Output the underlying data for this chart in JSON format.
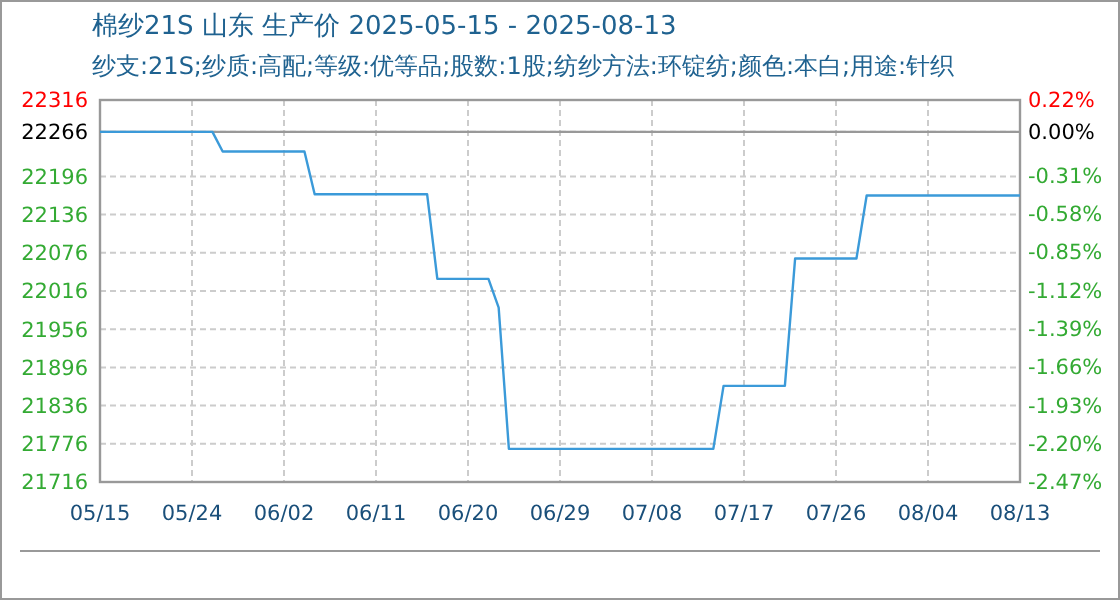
{
  "chart_data": {
    "type": "step",
    "title": "棉纱21S 山东 生产价 2025-05-15 - 2025-08-13",
    "subtitle": "纱支:21S;纱质:高配;等级:优等品;股数:1股;纺纱方法:环锭纺;颜色:本白;用途:针织",
    "x": [
      "2025-05-15",
      "2025-05-26",
      "2025-05-27",
      "2025-06-04",
      "2025-06-05",
      "2025-06-16",
      "2025-06-17",
      "2025-06-22",
      "2025-06-23",
      "2025-06-24",
      "2025-07-14",
      "2025-07-15",
      "2025-07-21",
      "2025-07-22",
      "2025-07-28",
      "2025-07-29",
      "2025-08-13"
    ],
    "series": [
      {
        "color": "#3b9ad9",
        "values": [
          22266,
          22266,
          22235,
          22235,
          22168,
          22168,
          22035,
          22035,
          21990,
          21768,
          21768,
          21867,
          21867,
          22067,
          22067,
          22166,
          22166
        ]
      }
    ],
    "xlim": [
      "2025-05-15",
      "2025-08-13"
    ],
    "xticks": [
      {
        "value": "2025-05-15",
        "label": "05/15"
      },
      {
        "value": "2025-05-24",
        "label": "05/24"
      },
      {
        "value": "2025-06-02",
        "label": "06/02"
      },
      {
        "value": "2025-06-11",
        "label": "06/11"
      },
      {
        "value": "2025-06-20",
        "label": "06/20"
      },
      {
        "value": "2025-06-29",
        "label": "06/29"
      },
      {
        "value": "2025-07-08",
        "label": "07/08"
      },
      {
        "value": "2025-07-17",
        "label": "07/17"
      },
      {
        "value": "2025-07-26",
        "label": "07/26"
      },
      {
        "value": "2025-08-04",
        "label": "08/04"
      },
      {
        "value": "2025-08-13",
        "label": "08/13"
      }
    ],
    "ylim": [
      21716,
      22316
    ],
    "yticks": [
      21716,
      21776,
      21836,
      21896,
      21956,
      22016,
      22076,
      22136,
      22196,
      22266,
      22316
    ],
    "y2lim": [
      -2.47,
      0.22
    ],
    "y2ticks": [
      {
        "value": -2.47,
        "label": "-2.47%"
      },
      {
        "value": -2.2,
        "label": "-2.20%"
      },
      {
        "value": -1.93,
        "label": "-1.93%"
      },
      {
        "value": -1.66,
        "label": "-1.66%"
      },
      {
        "value": -1.39,
        "label": "-1.39%"
      },
      {
        "value": -1.12,
        "label": "-1.12%"
      },
      {
        "value": -0.85,
        "label": "-0.85%"
      },
      {
        "value": -0.58,
        "label": "-0.58%"
      },
      {
        "value": -0.31,
        "label": "-0.31%"
      },
      {
        "value": 0,
        "label": "0.00%"
      },
      {
        "value": 0.22,
        "label": "0.22%"
      }
    ],
    "ref_lines": [
      {
        "axis": "y",
        "value": 22266,
        "color": "#999999"
      }
    ],
    "grid": true
  }
}
